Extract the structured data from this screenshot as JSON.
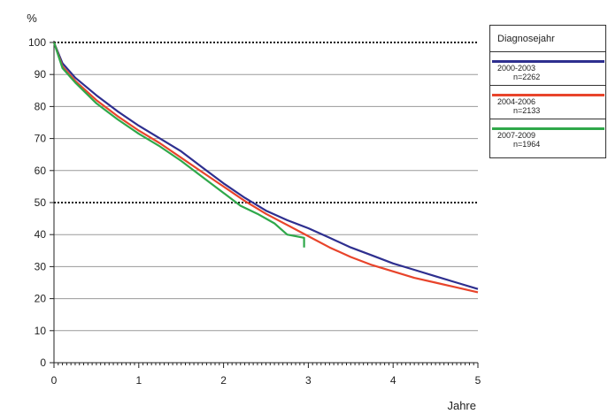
{
  "chart_data": {
    "type": "line",
    "ylabel": "%",
    "xlabel": "Jahre",
    "xlim": [
      0,
      5
    ],
    "ylim": [
      0,
      100
    ],
    "x_ticks": [
      0,
      1,
      2,
      3,
      4,
      5
    ],
    "y_ticks": [
      0,
      10,
      20,
      30,
      40,
      50,
      60,
      70,
      80,
      90,
      100
    ],
    "grid": "horizontal",
    "dotted_reference_lines": [
      50,
      100
    ],
    "legend": {
      "title": "Diagnosejahr",
      "placement": "right"
    },
    "series": [
      {
        "name": "2000-2003",
        "n_label": "n=2262",
        "color": "#2e2f8f",
        "points": [
          [
            0,
            100
          ],
          [
            0.1,
            93.5
          ],
          [
            0.25,
            89
          ],
          [
            0.5,
            83.5
          ],
          [
            0.75,
            78.5
          ],
          [
            1,
            74
          ],
          [
            1.25,
            70
          ],
          [
            1.5,
            66
          ],
          [
            1.75,
            61
          ],
          [
            2,
            56
          ],
          [
            2.25,
            51.5
          ],
          [
            2.5,
            47.5
          ],
          [
            2.75,
            44.5
          ],
          [
            3,
            42
          ],
          [
            3.25,
            39
          ],
          [
            3.5,
            36
          ],
          [
            3.75,
            33.5
          ],
          [
            4,
            31
          ],
          [
            4.25,
            29
          ],
          [
            4.5,
            27
          ],
          [
            4.75,
            25
          ],
          [
            5,
            23
          ]
        ]
      },
      {
        "name": "2004-2006",
        "n_label": "n=2133",
        "color": "#e8442b",
        "points": [
          [
            0,
            100
          ],
          [
            0.1,
            92.5
          ],
          [
            0.25,
            88
          ],
          [
            0.5,
            82
          ],
          [
            0.75,
            77
          ],
          [
            1,
            72.5
          ],
          [
            1.25,
            68.5
          ],
          [
            1.5,
            64
          ],
          [
            1.75,
            59.5
          ],
          [
            2,
            55
          ],
          [
            2.25,
            50.5
          ],
          [
            2.5,
            46.5
          ],
          [
            2.75,
            43
          ],
          [
            3,
            39.5
          ],
          [
            3.25,
            36
          ],
          [
            3.5,
            33
          ],
          [
            3.75,
            30.5
          ],
          [
            4,
            28.5
          ],
          [
            4.25,
            26.5
          ],
          [
            4.5,
            25
          ],
          [
            4.75,
            23.5
          ],
          [
            5,
            22
          ]
        ]
      },
      {
        "name": "2007-2009",
        "n_label": "n=1964",
        "color": "#2fa84a",
        "points": [
          [
            0,
            100
          ],
          [
            0.1,
            92
          ],
          [
            0.25,
            87.5
          ],
          [
            0.5,
            81
          ],
          [
            0.75,
            76
          ],
          [
            1,
            71.5
          ],
          [
            1.25,
            67.5
          ],
          [
            1.5,
            63
          ],
          [
            1.75,
            58
          ],
          [
            2,
            53
          ],
          [
            2.2,
            49
          ],
          [
            2.4,
            46.5
          ],
          [
            2.6,
            43.5
          ],
          [
            2.75,
            40
          ],
          [
            2.95,
            39
          ],
          [
            2.95,
            36
          ]
        ]
      }
    ]
  }
}
